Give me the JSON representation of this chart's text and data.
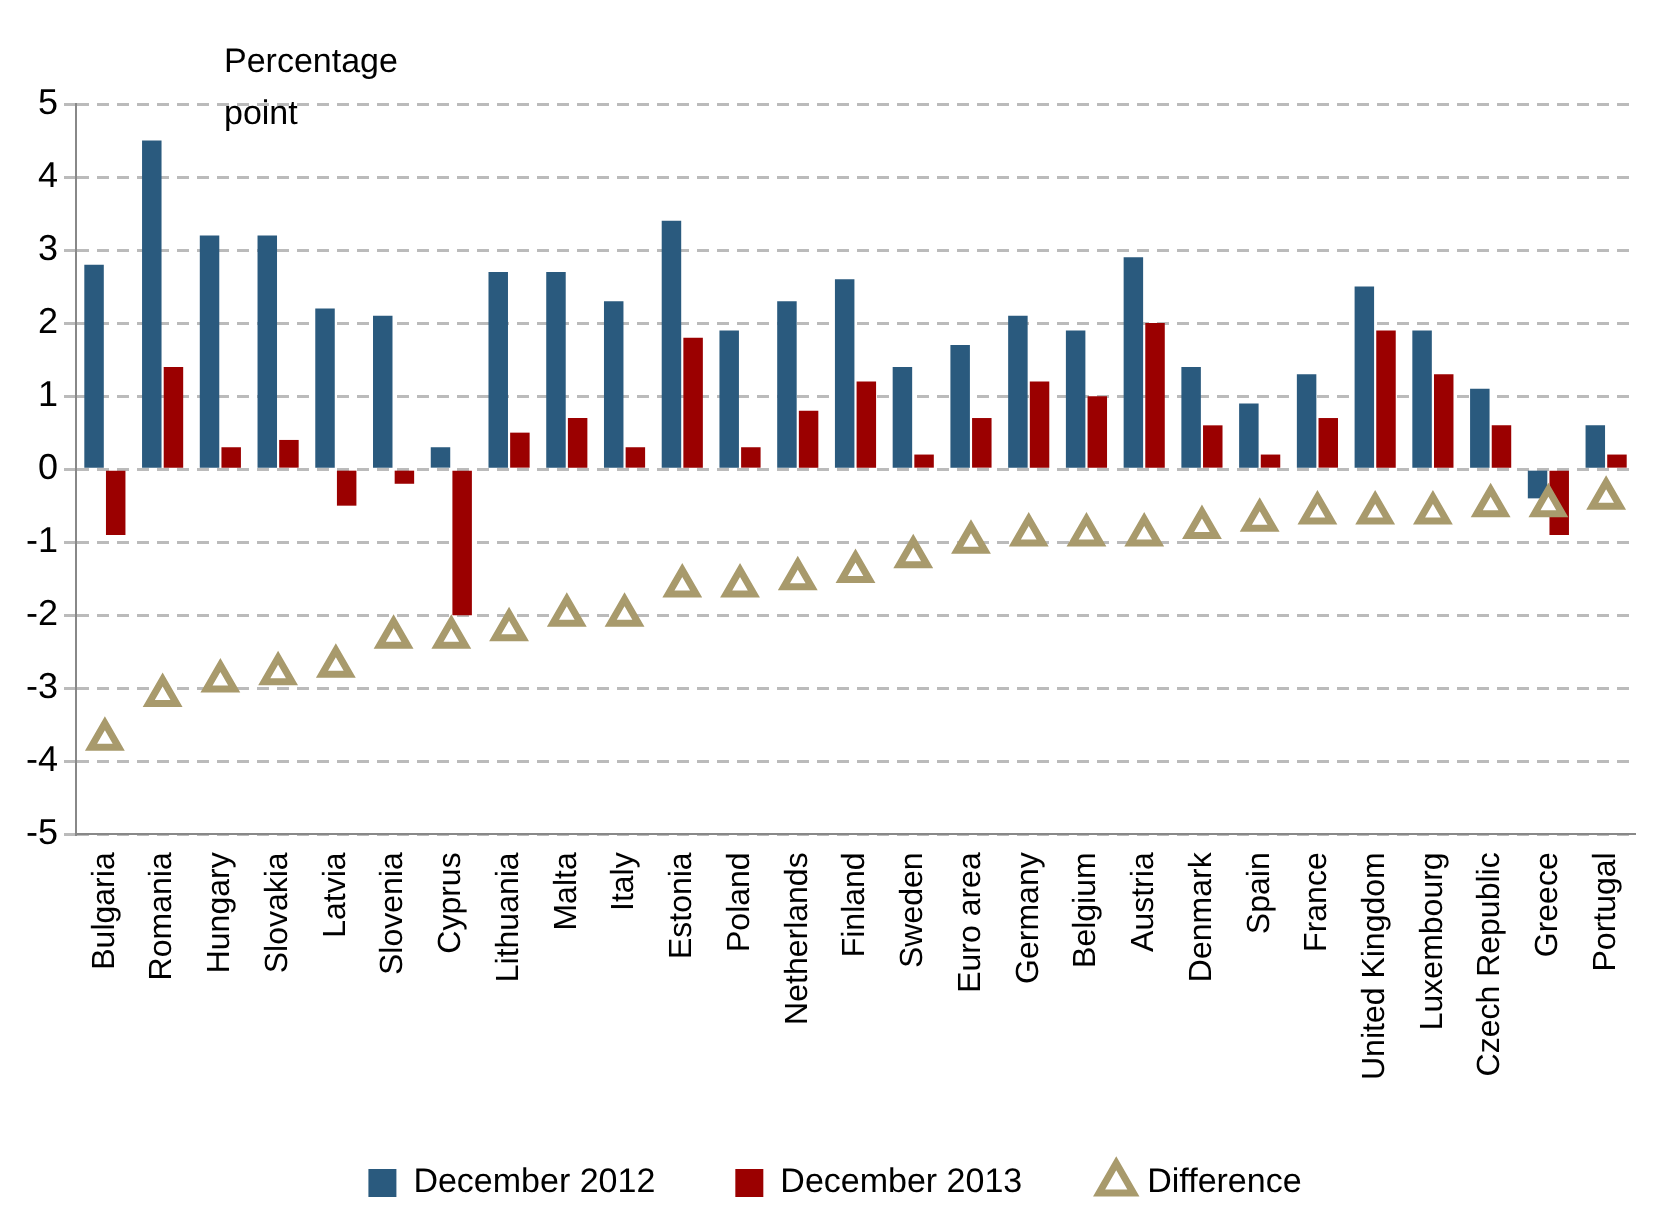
{
  "chart_data": {
    "type": "bar",
    "ylabel": "Percentage point",
    "categories": [
      "Bulgaria",
      "Romania",
      "Hungary",
      "Slovakia",
      "Latvia",
      "Slovenia",
      "Cyprus",
      "Lithuania",
      "Malta",
      "Italy",
      "Estonia",
      "Poland",
      "Netherlands",
      "Finland",
      "Sweden",
      "Euro area",
      "Germany",
      "Belgium",
      "Austria",
      "Denmark",
      "Spain",
      "France",
      "United Kingdom",
      "Luxembourg",
      "Czech Republic",
      "Greece",
      "Portugal"
    ],
    "series": [
      {
        "name": "December 2012",
        "color": "#2a5a7e",
        "values": [
          2.8,
          4.5,
          3.2,
          3.2,
          2.2,
          2.1,
          0.3,
          2.7,
          2.7,
          2.3,
          3.4,
          1.9,
          2.3,
          2.6,
          1.4,
          1.7,
          2.1,
          1.9,
          2.9,
          1.4,
          0.9,
          1.3,
          2.5,
          1.9,
          1.1,
          -0.4,
          0.6
        ]
      },
      {
        "name": "December 2013",
        "color": "#9b0000",
        "values": [
          -0.9,
          1.4,
          0.3,
          0.4,
          -0.5,
          -0.2,
          -2.0,
          0.5,
          0.7,
          0.3,
          1.8,
          0.3,
          0.8,
          1.2,
          0.2,
          0.7,
          1.2,
          1.0,
          2.0,
          0.6,
          0.2,
          0.7,
          1.9,
          1.3,
          0.6,
          -0.9,
          0.2
        ]
      },
      {
        "name": "Difference",
        "type": "scatter",
        "color": "#a89a6c",
        "values": [
          -3.7,
          -3.1,
          -2.9,
          -2.8,
          -2.7,
          -2.3,
          -2.3,
          -2.2,
          -2.0,
          -2.0,
          -1.6,
          -1.6,
          -1.5,
          -1.4,
          -1.2,
          -1.0,
          -0.9,
          -0.9,
          -0.9,
          -0.8,
          -0.7,
          -0.6,
          -0.6,
          -0.6,
          -0.5,
          -0.5,
          -0.4
        ],
        "marker": "triangle"
      }
    ],
    "ylim": [
      -5,
      5
    ],
    "yticks": [
      -5,
      -4,
      -3,
      -2,
      -1,
      0,
      1,
      2,
      3,
      4,
      5
    ],
    "grid": "y",
    "legend": "bottom"
  }
}
